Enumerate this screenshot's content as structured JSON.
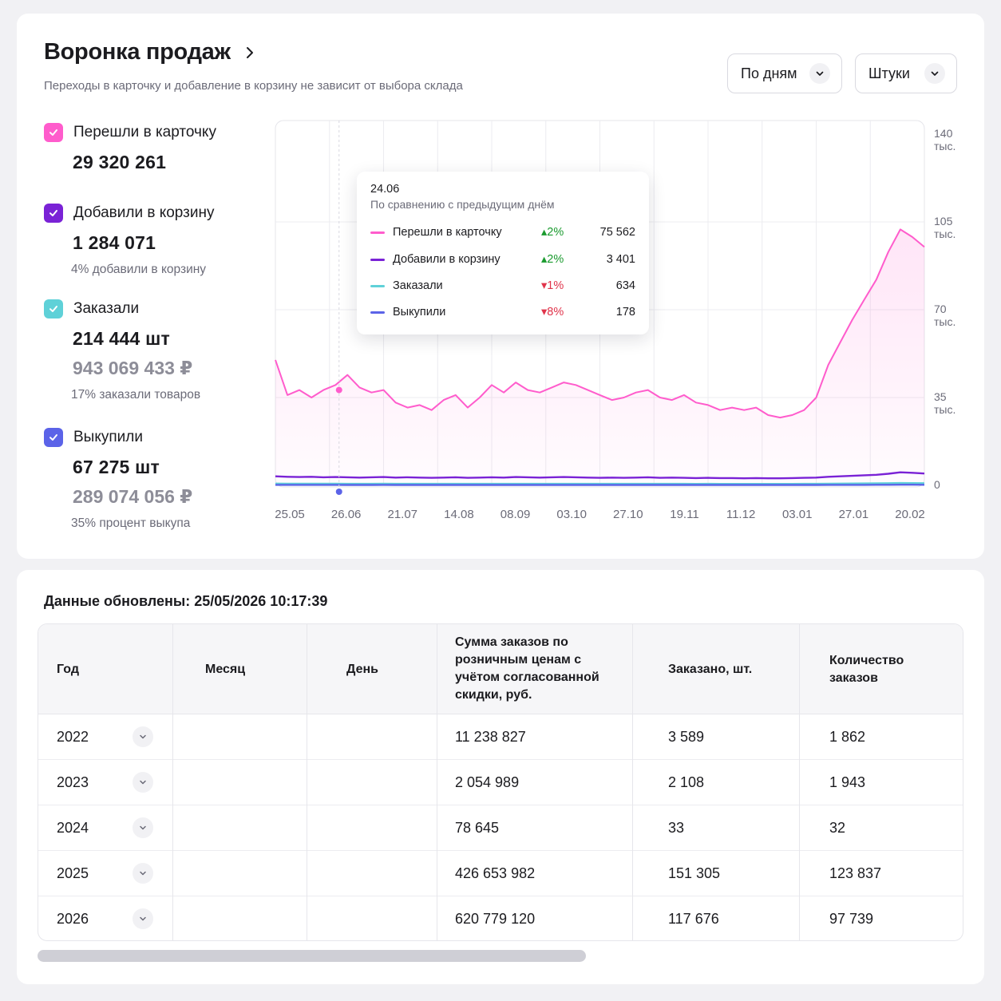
{
  "funnel": {
    "title": "Воронка продаж",
    "subtitle": "Переходы в карточку и добавление в корзину не зависит от выбора склада",
    "period_select": "По дням",
    "units_select": "Штуки",
    "metrics": [
      {
        "label": "Перешли в карточку",
        "value": "29 320 261",
        "color": "#ff5ccc"
      },
      {
        "label": "Добавили в корзину",
        "value": "1 284 071",
        "note": "4% добавили в корзину",
        "color": "#7a22d6"
      },
      {
        "label": "Заказали",
        "value": "214 444 шт",
        "money": "943 069 433 ₽",
        "note": "17% заказали товаров",
        "color": "#5fd1d8"
      },
      {
        "label": "Выкупили",
        "value": "67 275 шт",
        "money": "289 074 056 ₽",
        "note": "35% процент выкупа",
        "color": "#5b63e8"
      }
    ],
    "tooltip": {
      "date": "24.06",
      "subtitle": "По сравнению с предыдущим днём",
      "rows": [
        {
          "name": "Перешли в карточку",
          "change": "2%",
          "dir": "up",
          "value": "75 562",
          "color": "#ff5ccc"
        },
        {
          "name": "Добавили в корзину",
          "change": "2%",
          "dir": "up",
          "value": "3 401",
          "color": "#7a22d6"
        },
        {
          "name": "Заказали",
          "change": "1%",
          "dir": "down",
          "value": "634",
          "color": "#5fd1d8"
        },
        {
          "name": "Выкупили",
          "change": "8%",
          "dir": "down",
          "value": "178",
          "color": "#5b63e8"
        }
      ]
    }
  },
  "chart_data": {
    "type": "line",
    "x_ticks": [
      "25.05",
      "26.06",
      "21.07",
      "14.08",
      "08.09",
      "03.10",
      "27.10",
      "19.11",
      "11.12",
      "03.01",
      "27.01",
      "20.02"
    ],
    "y_ticks": [
      "140 тыс.",
      "105 тыс.",
      "70 тыс.",
      "35 тыс.",
      "0"
    ],
    "ylim": [
      0,
      140000
    ],
    "grid": true,
    "series": [
      {
        "name": "Перешли в карточку",
        "color": "#ff5ccc",
        "fill": true,
        "values": [
          50000,
          36000,
          38000,
          35000,
          38000,
          40000,
          44000,
          39000,
          37000,
          38000,
          33000,
          31000,
          32000,
          30000,
          34000,
          36000,
          31000,
          35000,
          40000,
          37000,
          41000,
          38000,
          37000,
          39000,
          41000,
          40000,
          38000,
          36000,
          34000,
          35000,
          37000,
          38000,
          35000,
          34000,
          36000,
          33000,
          32000,
          30000,
          31000,
          30000,
          31000,
          28000,
          27000,
          28000,
          30000,
          35000,
          48000,
          57000,
          66000,
          74000,
          82000,
          93000,
          102000,
          99000,
          95000
        ]
      },
      {
        "name": "Добавили в корзину",
        "color": "#7a22d6",
        "fill": false,
        "values": [
          3600,
          3400,
          3300,
          3400,
          3200,
          3300,
          3200,
          3100,
          3200,
          3300,
          3100,
          3200,
          3100,
          3000,
          3100,
          3200,
          3000,
          3100,
          3200,
          3100,
          3300,
          3200,
          3100,
          3200,
          3300,
          3200,
          3100,
          3000,
          3100,
          3000,
          3100,
          3200,
          3000,
          3100,
          3000,
          2900,
          3000,
          2900,
          2900,
          2800,
          2900,
          2800,
          2800,
          2900,
          3000,
          3100,
          3400,
          3600,
          3800,
          4000,
          4200,
          4600,
          5200,
          5000,
          4700
        ]
      },
      {
        "name": "Заказали",
        "color": "#5fd1d8",
        "fill": false,
        "values": [
          700,
          660,
          640,
          650,
          630,
          640,
          620,
          610,
          620,
          630,
          610,
          620,
          600,
          590,
          600,
          610,
          590,
          600,
          610,
          600,
          620,
          610,
          600,
          610,
          620,
          610,
          600,
          590,
          600,
          590,
          600,
          610,
          590,
          600,
          590,
          580,
          590,
          580,
          580,
          570,
          580,
          570,
          570,
          580,
          590,
          600,
          650,
          690,
          720,
          760,
          800,
          860,
          920,
          900,
          870
        ]
      },
      {
        "name": "Выкупили",
        "color": "#5b63e8",
        "fill": false,
        "values": [
          200,
          190,
          180,
          185,
          175,
          180,
          170,
          165,
          170,
          175,
          165,
          170,
          160,
          155,
          160,
          165,
          155,
          160,
          165,
          160,
          170,
          165,
          160,
          165,
          170,
          165,
          160,
          155,
          160,
          155,
          160,
          165,
          155,
          160,
          155,
          150,
          155,
          150,
          150,
          145,
          150,
          145,
          145,
          150,
          155,
          160,
          175,
          185,
          195,
          205,
          215,
          230,
          245,
          240,
          230
        ]
      }
    ]
  },
  "table": {
    "updated": "Данные обновлены: 25/05/2026 10:17:39",
    "headers": {
      "year": "Год",
      "month": "Месяц",
      "day": "День",
      "sum": "Сумма заказов по розничным ценам с учётом согласованной скидки, руб.",
      "ordered": "Заказано, шт.",
      "count": "Количество заказов"
    },
    "rows": [
      {
        "year": "2022",
        "sum": "11 238 827",
        "ordered": "3 589",
        "count": "1 862"
      },
      {
        "year": "2023",
        "sum": "2 054 989",
        "ordered": "2 108",
        "count": "1 943"
      },
      {
        "year": "2024",
        "sum": "78 645",
        "ordered": "33",
        "count": "32"
      },
      {
        "year": "2025",
        "sum": "426 653 982",
        "ordered": "151 305",
        "count": "123 837"
      },
      {
        "year": "2026",
        "sum": "620 779 120",
        "ordered": "117 676",
        "count": "97 739"
      }
    ]
  }
}
